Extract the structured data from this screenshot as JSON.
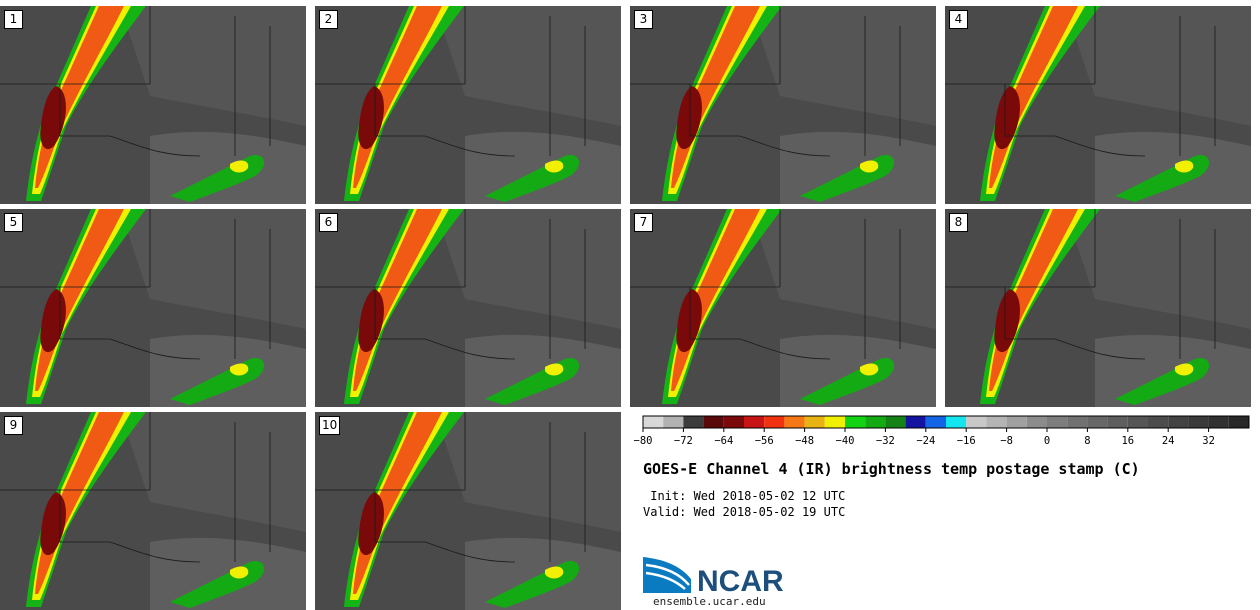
{
  "panels": [
    "1",
    "2",
    "3",
    "4",
    "5",
    "6",
    "7",
    "8",
    "9",
    "10"
  ],
  "colorbar": {
    "colors": [
      "#d8d8d8",
      "#b2b2b2",
      "#3c3c3c",
      "#5a0a0a",
      "#7a0a0a",
      "#c81414",
      "#f03210",
      "#f57814",
      "#e8b414",
      "#f0f000",
      "#14d214",
      "#14aa14",
      "#148214",
      "#1414a0",
      "#1464e6",
      "#14e6f0",
      "#c8c8c8",
      "#b4b4b4",
      "#a0a0a0",
      "#8c8c8c",
      "#7d7d7d",
      "#717171",
      "#676767",
      "#5e5e5e",
      "#555555",
      "#4c4c4c",
      "#434343",
      "#3a3a3a",
      "#313131",
      "#282828"
    ],
    "tick_labels": [
      "−80",
      "−72",
      "−64",
      "−56",
      "−48",
      "−40",
      "−32",
      "−24",
      "−16",
      "−8",
      "0",
      "8",
      "16",
      "24",
      "32"
    ]
  },
  "title": "GOES-E Channel 4 (IR) brightness temp postage stamp (C)",
  "init": " Init: Wed 2018-05-02 12 UTC",
  "valid": "Valid: Wed 2018-05-02 19 UTC",
  "logo_text": "NCAR",
  "site": "ensemble.ucar.edu"
}
